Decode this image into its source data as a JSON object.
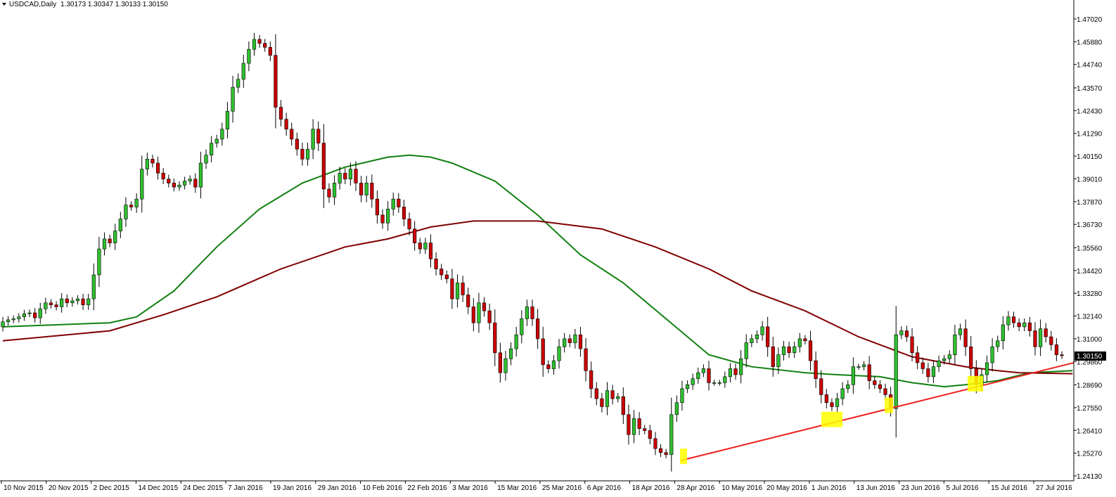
{
  "header": {
    "symbol": "USDCAD,Daily",
    "ohlc": "1.30173 1.30347 1.30133 1.30150"
  },
  "current_price_label": "1.30150",
  "colors": {
    "bull_candle": "#2fc02f",
    "bear_candle": "#cc0000",
    "candle_outline": "#000000",
    "ma_fast": "#108010",
    "ma_slow": "#800000",
    "trendline": "#ee2222",
    "highlight": "#ffff00",
    "price_box": "#000000"
  },
  "chart_data": {
    "type": "candlestick",
    "title": "USDCAD,Daily",
    "x_tick_labels": [
      "10 Nov 2015",
      "20 Nov 2015",
      "2 Dec 2015",
      "14 Dec 2015",
      "24 Dec 2015",
      "7 Jan 2016",
      "19 Jan 2016",
      "29 Jan 2016",
      "10 Feb 2016",
      "22 Feb 2016",
      "3 Mar 2016",
      "15 Mar 2016",
      "25 Mar 2016",
      "6 Apr 2016",
      "18 Apr 2016",
      "28 Apr 2016",
      "10 May 2016",
      "20 May 2016",
      "1 Jun 2016",
      "13 Jun 2016",
      "23 Jun 2016",
      "5 Jul 2016",
      "15 Jul 2016",
      "27 Jul 2016"
    ],
    "y_tick_labels": [
      "1.47020",
      "1.45880",
      "1.44740",
      "1.43570",
      "1.42430",
      "1.41290",
      "1.40150",
      "1.39010",
      "1.37870",
      "1.36730",
      "1.35560",
      "1.34420",
      "1.33280",
      "1.32140",
      "1.31000",
      "1.29860",
      "1.28690",
      "1.27550",
      "1.26410",
      "1.25270",
      "1.24130"
    ],
    "ylim": [
      1.2413,
      1.4702
    ],
    "closes": [
      1.3185,
      1.3195,
      1.32,
      1.321,
      1.3225,
      1.323,
      1.3205,
      1.325,
      1.328,
      1.327,
      1.326,
      1.33,
      1.328,
      1.329,
      1.33,
      1.327,
      1.33,
      1.342,
      1.355,
      1.36,
      1.358,
      1.364,
      1.37,
      1.377,
      1.376,
      1.38,
      1.395,
      1.4,
      1.398,
      1.393,
      1.39,
      1.388,
      1.386,
      1.387,
      1.389,
      1.39,
      1.386,
      1.398,
      1.402,
      1.408,
      1.41,
      1.415,
      1.424,
      1.436,
      1.44,
      1.448,
      1.455,
      1.46,
      1.458,
      1.456,
      1.452,
      1.426,
      1.42,
      1.415,
      1.41,
      1.405,
      1.4,
      1.405,
      1.415,
      1.408,
      1.385,
      1.381,
      1.388,
      1.393,
      1.39,
      1.395,
      1.388,
      1.382,
      1.388,
      1.38,
      1.372,
      1.368,
      1.375,
      1.38,
      1.376,
      1.37,
      1.365,
      1.358,
      1.355,
      1.358,
      1.35,
      1.345,
      1.342,
      1.34,
      1.33,
      1.338,
      1.332,
      1.326,
      1.318,
      1.328,
      1.324,
      1.318,
      1.303,
      1.293,
      1.3,
      1.305,
      1.312,
      1.32,
      1.326,
      1.32,
      1.31,
      1.297,
      1.295,
      1.299,
      1.306,
      1.31,
      1.308,
      1.312,
      1.305,
      1.294,
      1.285,
      1.28,
      1.276,
      1.284,
      1.28,
      1.281,
      1.272,
      1.262,
      1.27,
      1.265,
      1.264,
      1.26,
      1.255,
      1.253,
      1.252,
      1.272,
      1.278,
      1.285,
      1.287,
      1.29,
      1.293,
      1.295,
      1.288,
      1.288,
      1.288,
      1.291,
      1.295,
      1.292,
      1.3,
      1.308,
      1.31,
      1.312,
      1.316,
      1.306,
      1.296,
      1.302,
      1.306,
      1.303,
      1.306,
      1.31,
      1.309,
      1.299,
      1.29,
      1.282,
      1.278,
      1.276,
      1.28,
      1.285,
      1.287,
      1.296,
      1.296,
      1.297,
      1.289,
      1.287,
      1.285,
      1.282,
      1.275,
      1.312,
      1.314,
      1.311,
      1.303,
      1.298,
      1.295,
      1.291,
      1.296,
      1.299,
      1.3,
      1.302,
      1.312,
      1.315,
      1.306,
      1.295,
      1.287,
      1.292,
      1.298,
      1.306,
      1.309,
      1.317,
      1.321,
      1.318,
      1.316,
      1.318,
      1.314,
      1.306,
      1.315,
      1.311,
      1.307,
      1.302,
      1.3015
    ],
    "x_range": [
      "10 Nov 2015",
      "2 Aug 2016"
    ],
    "series": [
      {
        "name": "",
        "type": "moving-average",
        "key": "ma_fast",
        "points": [
          [
            0,
            1.316
          ],
          [
            20,
            1.318
          ],
          [
            25,
            1.321
          ],
          [
            32,
            1.334
          ],
          [
            40,
            1.356
          ],
          [
            48,
            1.375
          ],
          [
            56,
            1.388
          ],
          [
            64,
            1.396
          ],
          [
            72,
            1.401
          ],
          [
            76,
            1.402
          ],
          [
            80,
            1.401
          ],
          [
            84,
            1.398
          ],
          [
            92,
            1.389
          ],
          [
            100,
            1.372
          ],
          [
            108,
            1.352
          ],
          [
            116,
            1.338
          ],
          [
            124,
            1.32
          ],
          [
            132,
            1.302
          ],
          [
            140,
            1.296
          ],
          [
            150,
            1.293
          ],
          [
            156,
            1.292
          ],
          [
            164,
            1.291
          ],
          [
            170,
            1.288
          ],
          [
            176,
            1.286
          ],
          [
            180,
            1.287
          ],
          [
            186,
            1.289
          ],
          [
            192,
            1.293
          ],
          [
            200,
            1.294
          ]
        ]
      },
      {
        "name": "",
        "type": "moving-average",
        "key": "ma_slow",
        "points": [
          [
            0,
            1.309
          ],
          [
            20,
            1.314
          ],
          [
            30,
            1.322
          ],
          [
            40,
            1.331
          ],
          [
            52,
            1.345
          ],
          [
            64,
            1.356
          ],
          [
            72,
            1.36
          ],
          [
            80,
            1.366
          ],
          [
            88,
            1.369
          ],
          [
            100,
            1.369
          ],
          [
            112,
            1.365
          ],
          [
            122,
            1.356
          ],
          [
            132,
            1.345
          ],
          [
            140,
            1.334
          ],
          [
            150,
            1.324
          ],
          [
            160,
            1.311
          ],
          [
            170,
            1.301
          ],
          [
            180,
            1.296
          ],
          [
            186,
            1.294
          ],
          [
            190,
            1.293
          ],
          [
            200,
            1.2925
          ]
        ]
      }
    ],
    "trendline": {
      "from": [
        0,
        1.249
      ],
      "to": [
        1,
        1.298
      ]
    },
    "grid": false,
    "legend": "none"
  }
}
